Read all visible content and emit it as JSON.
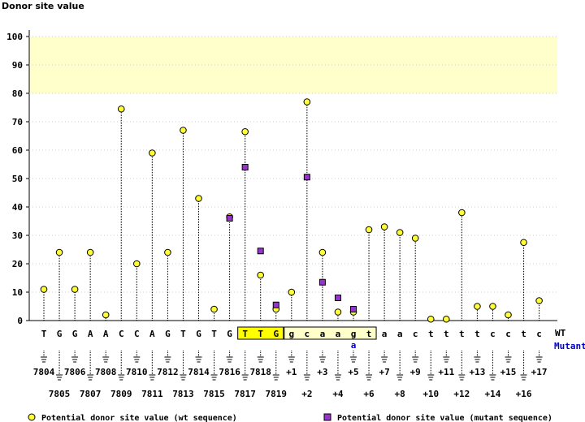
{
  "chart_data": {
    "type": "scatter",
    "title": "Donor site value",
    "ylim": [
      0,
      100
    ],
    "yticks": [
      0,
      10,
      20,
      30,
      40,
      50,
      60,
      70,
      80,
      90,
      100
    ],
    "highlight_band": {
      "from": 80,
      "to": 100,
      "color": "#ffffcc"
    },
    "x_sequence": [
      {
        "pos": "7804",
        "wt": "T"
      },
      {
        "pos": "7805",
        "wt": "G"
      },
      {
        "pos": "7806",
        "wt": "G"
      },
      {
        "pos": "7807",
        "wt": "A"
      },
      {
        "pos": "7808",
        "wt": "A"
      },
      {
        "pos": "7809",
        "wt": "C"
      },
      {
        "pos": "7810",
        "wt": "C"
      },
      {
        "pos": "7811",
        "wt": "A"
      },
      {
        "pos": "7812",
        "wt": "G"
      },
      {
        "pos": "7813",
        "wt": "T"
      },
      {
        "pos": "7814",
        "wt": "G"
      },
      {
        "pos": "7815",
        "wt": "T"
      },
      {
        "pos": "7816",
        "wt": "G"
      },
      {
        "pos": "7817",
        "wt": "T"
      },
      {
        "pos": "7818",
        "wt": "T"
      },
      {
        "pos": "7819",
        "wt": "G"
      },
      {
        "pos": "+1",
        "wt": "g"
      },
      {
        "pos": "+2",
        "wt": "c"
      },
      {
        "pos": "+3",
        "wt": "a"
      },
      {
        "pos": "+4",
        "wt": "a"
      },
      {
        "pos": "+5",
        "wt": "g",
        "mutant": "a"
      },
      {
        "pos": "+6",
        "wt": "t"
      },
      {
        "pos": "+7",
        "wt": "a"
      },
      {
        "pos": "+8",
        "wt": "a"
      },
      {
        "pos": "+9",
        "wt": "c"
      },
      {
        "pos": "+10",
        "wt": "t"
      },
      {
        "pos": "+11",
        "wt": "t"
      },
      {
        "pos": "+12",
        "wt": "t"
      },
      {
        "pos": "+13",
        "wt": "t"
      },
      {
        "pos": "+14",
        "wt": "c"
      },
      {
        "pos": "+15",
        "wt": "c"
      },
      {
        "pos": "+16",
        "wt": "t"
      },
      {
        "pos": "+17",
        "wt": "c"
      }
    ],
    "exon_box": {
      "first_index": 13,
      "last_index": 15,
      "color": "#ffff00"
    },
    "intron_box": {
      "first_index": 16,
      "last_index": 21,
      "color": "#ffffcc"
    },
    "series": [
      {
        "name": "Potential donor site value (wt sequence)",
        "marker": "circle",
        "color": "#ffff33",
        "values": [
          11,
          24,
          11,
          24,
          2,
          74.5,
          20,
          59,
          24,
          67,
          43,
          4,
          36.5,
          66.5,
          16,
          4,
          10,
          77,
          24,
          3,
          3,
          32,
          33,
          31,
          29,
          0.5,
          0.5,
          38,
          5,
          5,
          2,
          27.5,
          7
        ]
      },
      {
        "name": "Potential donor site value (mutant sequence)",
        "marker": "square",
        "color": "#9933cc",
        "points": [
          {
            "index": 12,
            "value": 36
          },
          {
            "index": 13,
            "value": 54
          },
          {
            "index": 14,
            "value": 24.5
          },
          {
            "index": 15,
            "value": 5.5
          },
          {
            "index": 17,
            "value": 50.5
          },
          {
            "index": 18,
            "value": 13.5
          },
          {
            "index": 19,
            "value": 8
          },
          {
            "index": 20,
            "value": 4
          }
        ]
      }
    ],
    "row_labels": {
      "wt": "WT",
      "mutant": "Mutant"
    }
  },
  "legend": {
    "wt": "Potential donor site value (wt sequence)",
    "mutant": "Potential donor site value (mutant sequence)"
  }
}
